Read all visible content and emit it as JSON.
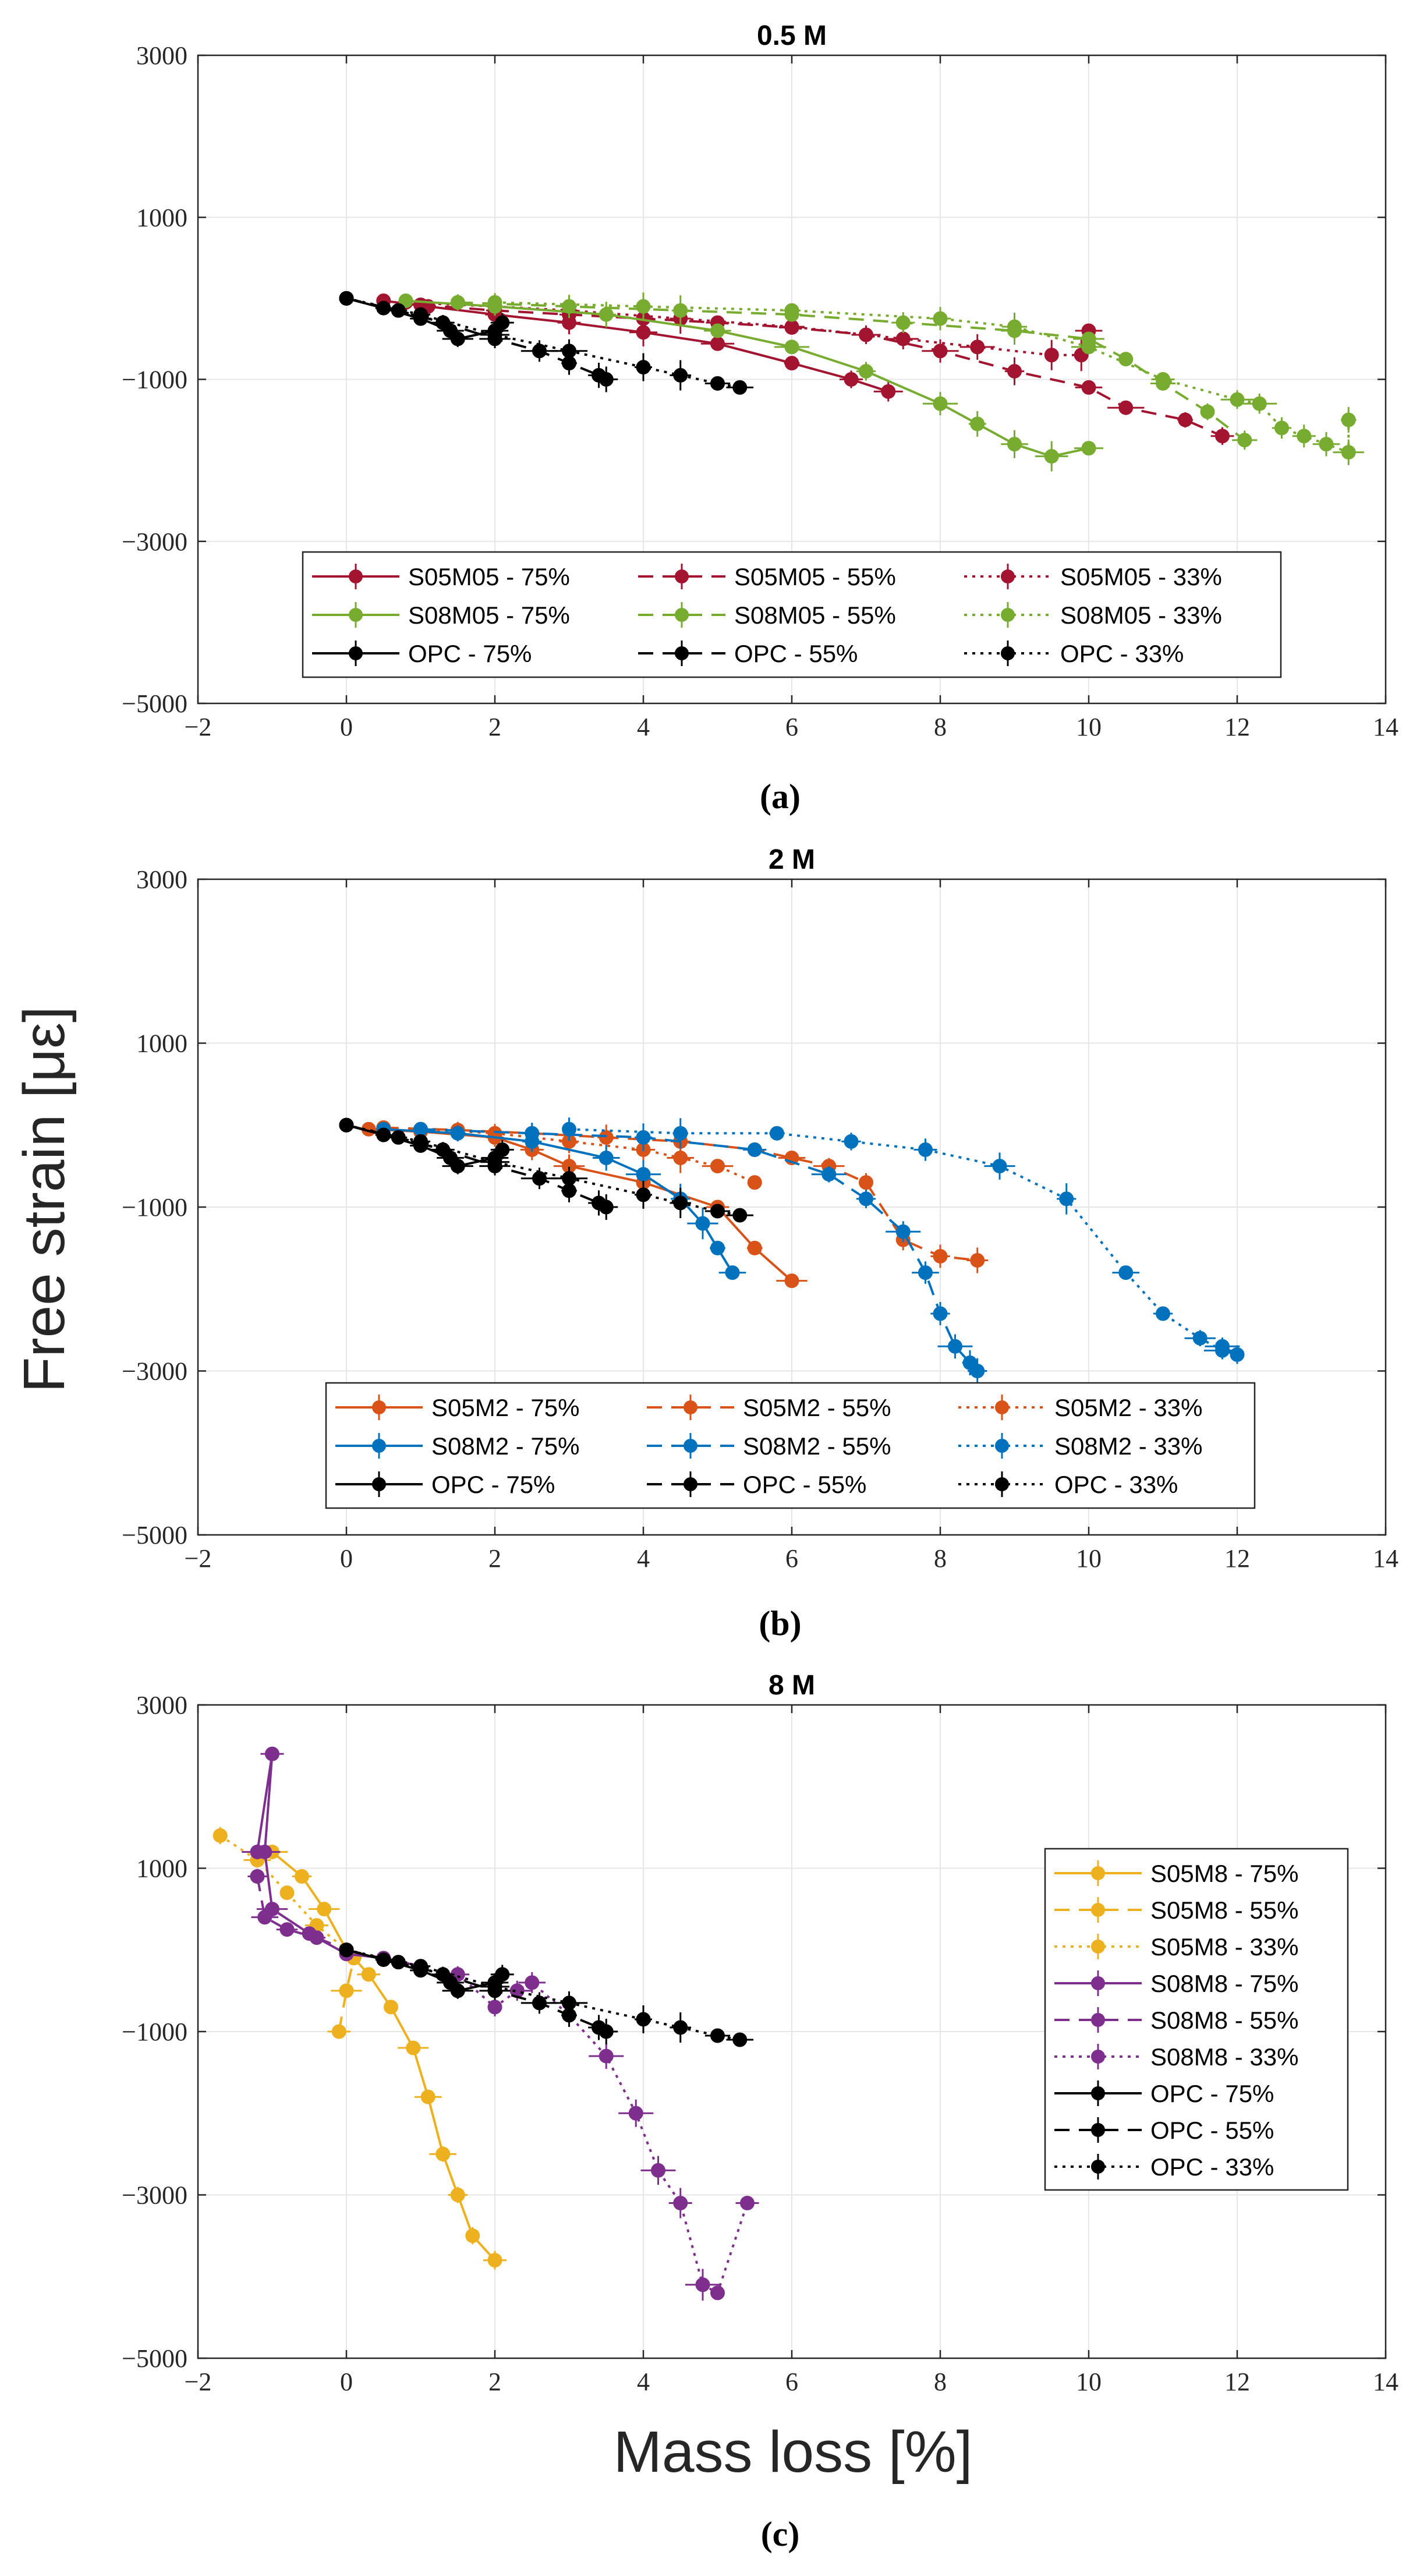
{
  "figure": {
    "ylabel": "Free strain [με]",
    "xlabel": "Mass loss [%]"
  },
  "chart_data": [
    {
      "type": "line",
      "title": "0.5 M",
      "caption": "(a)",
      "xlim": [
        -2,
        14
      ],
      "ylim": [
        -5000,
        3000
      ],
      "xticks": [
        -2,
        0,
        2,
        4,
        6,
        8,
        10,
        12,
        14
      ],
      "yticks": [
        -5000,
        -3000,
        -1000,
        1000,
        3000
      ],
      "grid": true,
      "legend": {
        "placement": "bottom-center",
        "columns": 3
      },
      "series": [
        {
          "name": "S05M05 - 75%",
          "color": "#a2142f",
          "linestyle": "solid",
          "x": [
            0.5,
            1.1,
            2.0,
            3.0,
            4.0,
            5.0,
            6.0,
            6.8,
            7.3
          ],
          "y": [
            -30,
            -100,
            -200,
            -300,
            -420,
            -560,
            -800,
            -1000,
            -1150
          ]
        },
        {
          "name": "S05M05 - 55%",
          "color": "#a2142f",
          "linestyle": "dashed",
          "x": [
            1.0,
            2.0,
            3.0,
            4.0,
            5.0,
            6.0,
            7.0,
            8.0,
            9.0,
            10.0,
            10.5,
            11.3,
            11.8
          ],
          "y": [
            -80,
            -150,
            -200,
            -250,
            -300,
            -360,
            -450,
            -650,
            -900,
            -1100,
            -1350,
            -1500,
            -1700
          ]
        },
        {
          "name": "S05M05 - 33%",
          "color": "#a2142f",
          "linestyle": "dotted",
          "x": [
            0.8,
            2.0,
            3.0,
            4.5,
            6.0,
            7.5,
            8.5,
            9.5,
            9.9,
            10.0,
            10.0
          ],
          "y": [
            -50,
            -100,
            -150,
            -250,
            -350,
            -500,
            -600,
            -700,
            -700,
            -500,
            -400
          ]
        },
        {
          "name": "S08M05 - 75%",
          "color": "#77ac30",
          "linestyle": "solid",
          "x": [
            0.8,
            2.0,
            3.5,
            5.0,
            6.0,
            7.0,
            8.0,
            8.5,
            9.0,
            9.5,
            10.0
          ],
          "y": [
            -30,
            -100,
            -200,
            -400,
            -600,
            -900,
            -1300,
            -1550,
            -1800,
            -1950,
            -1850
          ]
        },
        {
          "name": "S08M05 - 55%",
          "color": "#77ac30",
          "linestyle": "dashed",
          "x": [
            1.5,
            3.0,
            4.5,
            6.0,
            7.5,
            9.0,
            10.0,
            10.5,
            11.0,
            11.6,
            12.1
          ],
          "y": [
            -50,
            -100,
            -150,
            -200,
            -300,
            -400,
            -500,
            -750,
            -1050,
            -1400,
            -1750
          ]
        },
        {
          "name": "S08M05 - 33%",
          "color": "#77ac30",
          "linestyle": "dotted",
          "x": [
            2.0,
            4.0,
            6.0,
            8.0,
            9.0,
            10.0,
            11.0,
            12.0,
            12.3,
            12.6,
            12.9,
            13.2,
            13.5,
            13.5
          ],
          "y": [
            -50,
            -100,
            -150,
            -250,
            -350,
            -600,
            -1000,
            -1250,
            -1300,
            -1600,
            -1700,
            -1800,
            -1900,
            -1500
          ]
        },
        {
          "name": "OPC - 75%",
          "color": "#000000",
          "linestyle": "solid",
          "x": [
            0,
            0.5,
            1.0,
            1.4,
            1.5,
            2.0,
            2.1
          ],
          "y": [
            0,
            -120,
            -250,
            -400,
            -500,
            -400,
            -300
          ]
        },
        {
          "name": "OPC - 55%",
          "color": "#000000",
          "linestyle": "dashed",
          "x": [
            0,
            0.7,
            1.3,
            2.0,
            2.6,
            3.0,
            3.4,
            3.5
          ],
          "y": [
            0,
            -150,
            -300,
            -500,
            -650,
            -800,
            -950,
            -1000
          ]
        },
        {
          "name": "OPC - 33%",
          "color": "#000000",
          "linestyle": "dotted",
          "x": [
            0,
            1.0,
            2.0,
            3.0,
            4.0,
            4.5,
            5.0,
            5.3
          ],
          "y": [
            0,
            -200,
            -450,
            -650,
            -850,
            -950,
            -1050,
            -1100
          ]
        }
      ]
    },
    {
      "type": "line",
      "title": "2 M",
      "caption": "(b)",
      "xlim": [
        -2,
        14
      ],
      "ylim": [
        -5000,
        3000
      ],
      "xticks": [
        -2,
        0,
        2,
        4,
        6,
        8,
        10,
        12,
        14
      ],
      "yticks": [
        -5000,
        -3000,
        -1000,
        1000,
        3000
      ],
      "grid": true,
      "legend": {
        "placement": "bottom-center",
        "columns": 3
      },
      "series": [
        {
          "name": "S05M2 - 75%",
          "color": "#d95319",
          "linestyle": "solid",
          "x": [
            0.3,
            1.0,
            2.0,
            2.5,
            3.0,
            4.0,
            5.0,
            5.5,
            6.0
          ],
          "y": [
            -50,
            -80,
            -150,
            -300,
            -500,
            -700,
            -1000,
            -1500,
            -1900
          ]
        },
        {
          "name": "S05M2 - 55%",
          "color": "#d95319",
          "linestyle": "dashed",
          "x": [
            0.5,
            1.5,
            2.5,
            3.5,
            4.5,
            5.5,
            6.0,
            6.5,
            7.0,
            7.5,
            8.0,
            8.5
          ],
          "y": [
            -30,
            -60,
            -100,
            -150,
            -200,
            -300,
            -400,
            -500,
            -700,
            -1400,
            -1600,
            -1650
          ]
        },
        {
          "name": "S05M2 - 33%",
          "color": "#d95319",
          "linestyle": "dotted",
          "x": [
            1.0,
            2.0,
            3.0,
            4.0,
            4.5,
            5.0,
            5.5
          ],
          "y": [
            -50,
            -100,
            -200,
            -300,
            -400,
            -500,
            -700
          ]
        },
        {
          "name": "S08M2 - 75%",
          "color": "#0072bd",
          "linestyle": "solid",
          "x": [
            0.5,
            1.5,
            2.5,
            3.5,
            4.0,
            4.5,
            4.8,
            5.0,
            5.2
          ],
          "y": [
            -50,
            -100,
            -200,
            -400,
            -600,
            -900,
            -1200,
            -1500,
            -1800
          ]
        },
        {
          "name": "S08M2 - 55%",
          "color": "#0072bd",
          "linestyle": "dashed",
          "x": [
            1.0,
            2.5,
            4.0,
            5.5,
            6.5,
            7.0,
            7.5,
            7.8,
            8.0,
            8.2,
            8.4,
            8.5
          ],
          "y": [
            -50,
            -100,
            -150,
            -300,
            -600,
            -900,
            -1300,
            -1800,
            -2300,
            -2700,
            -2900,
            -3000
          ]
        },
        {
          "name": "S08M2 - 33%",
          "color": "#0072bd",
          "linestyle": "dotted",
          "x": [
            3.0,
            4.5,
            5.8,
            6.8,
            7.8,
            8.8,
            9.7,
            10.5,
            11.0,
            11.5,
            11.8,
            12.0,
            11.8
          ],
          "y": [
            -50,
            -100,
            -100,
            -200,
            -300,
            -500,
            -900,
            -1800,
            -2300,
            -2600,
            -2750,
            -2800,
            -2700
          ]
        },
        {
          "name": "OPC - 75%",
          "color": "#000000",
          "linestyle": "solid",
          "x": [
            0,
            0.5,
            1.0,
            1.4,
            1.5,
            2.0,
            2.1
          ],
          "y": [
            0,
            -120,
            -250,
            -400,
            -500,
            -400,
            -300
          ]
        },
        {
          "name": "OPC - 55%",
          "color": "#000000",
          "linestyle": "dashed",
          "x": [
            0,
            0.7,
            1.3,
            2.0,
            2.6,
            3.0,
            3.4,
            3.5
          ],
          "y": [
            0,
            -150,
            -300,
            -500,
            -650,
            -800,
            -950,
            -1000
          ]
        },
        {
          "name": "OPC - 33%",
          "color": "#000000",
          "linestyle": "dotted",
          "x": [
            0,
            1.0,
            2.0,
            3.0,
            4.0,
            4.5,
            5.0,
            5.3
          ],
          "y": [
            0,
            -200,
            -450,
            -650,
            -850,
            -950,
            -1050,
            -1100
          ]
        }
      ]
    },
    {
      "type": "line",
      "title": "8 M",
      "caption": "(c)",
      "xlim": [
        -2,
        14
      ],
      "ylim": [
        -5000,
        3000
      ],
      "xticks": [
        -2,
        0,
        2,
        4,
        6,
        8,
        10,
        12,
        14
      ],
      "yticks": [
        -5000,
        -3000,
        -1000,
        1000,
        3000
      ],
      "grid": true,
      "legend": {
        "placement": "right",
        "columns": 1
      },
      "series": [
        {
          "name": "S05M8 - 75%",
          "color": "#edb120",
          "linestyle": "solid",
          "x": [
            -1.0,
            -0.6,
            -0.3,
            0,
            0.3,
            0.6,
            0.9,
            1.1,
            1.3,
            1.5,
            1.7,
            2.0
          ],
          "y": [
            1200,
            900,
            500,
            0,
            -300,
            -700,
            -1200,
            -1800,
            -2500,
            -3000,
            -3500,
            -3800
          ]
        },
        {
          "name": "S05M8 - 55%",
          "color": "#edb120",
          "linestyle": "dashed",
          "x": [
            -0.1,
            0,
            0.1
          ],
          "y": [
            -1000,
            -500,
            -100
          ]
        },
        {
          "name": "S05M8 - 33%",
          "color": "#edb120",
          "linestyle": "dotted",
          "x": [
            -1.7,
            -1.2,
            -0.8,
            -0.4,
            0
          ],
          "y": [
            1400,
            1100,
            700,
            300,
            0
          ]
        },
        {
          "name": "S08M8 - 75%",
          "color": "#7e2f8e",
          "linestyle": "solid",
          "x": [
            -1.2,
            -1.0,
            -1.1,
            -1.0,
            -0.5,
            0,
            0.5,
            1.0
          ],
          "y": [
            1200,
            2400,
            1200,
            500,
            200,
            -50,
            -100,
            -200
          ]
        },
        {
          "name": "S08M8 - 55%",
          "color": "#7e2f8e",
          "linestyle": "dashed",
          "x": [
            -1.2,
            -1.1,
            -0.8,
            -0.4,
            0
          ],
          "y": [
            900,
            400,
            250,
            150,
            0
          ]
        },
        {
          "name": "S08M8 - 33%",
          "color": "#7e2f8e",
          "linestyle": "dotted",
          "x": [
            1.5,
            2.0,
            2.3,
            2.5,
            3.0,
            3.5,
            3.9,
            4.2,
            4.5,
            4.8,
            5.0,
            5.4
          ],
          "y": [
            -300,
            -700,
            -500,
            -400,
            -800,
            -1300,
            -2000,
            -2700,
            -3100,
            -4100,
            -4200,
            -3100
          ]
        },
        {
          "name": "OPC - 75%",
          "color": "#000000",
          "linestyle": "solid",
          "x": [
            0,
            0.5,
            1.0,
            1.4,
            1.5,
            2.0,
            2.1
          ],
          "y": [
            0,
            -120,
            -250,
            -400,
            -500,
            -400,
            -300
          ]
        },
        {
          "name": "OPC - 55%",
          "color": "#000000",
          "linestyle": "dashed",
          "x": [
            0,
            0.7,
            1.3,
            2.0,
            2.6,
            3.0,
            3.4,
            3.5
          ],
          "y": [
            0,
            -150,
            -300,
            -500,
            -650,
            -800,
            -950,
            -1000
          ]
        },
        {
          "name": "OPC - 33%",
          "color": "#000000",
          "linestyle": "dotted",
          "x": [
            0,
            1.0,
            2.0,
            3.0,
            4.0,
            4.5,
            5.0,
            5.3
          ],
          "y": [
            0,
            -200,
            -450,
            -650,
            -850,
            -950,
            -1050,
            -1100
          ]
        }
      ]
    }
  ]
}
